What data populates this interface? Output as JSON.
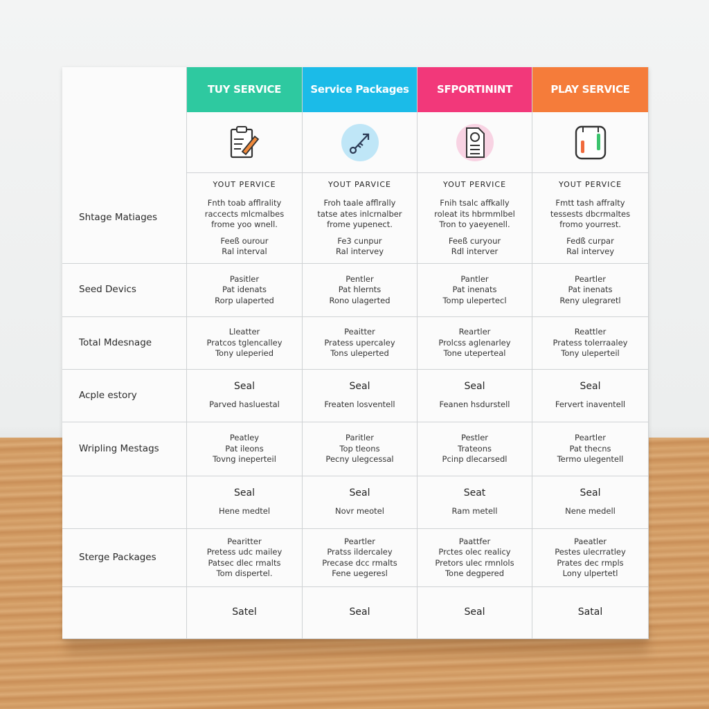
{
  "header": {
    "columns": [
      {
        "label": "TUY SERVICE",
        "color": "#2ec9a0",
        "icon": "clipboard-pencil-icon"
      },
      {
        "label": "Service Packages",
        "color": "#1bbbe8",
        "icon": "key-arrow-icon"
      },
      {
        "label": "SFPORTININT",
        "color": "#f2387a",
        "icon": "document-clock-icon"
      },
      {
        "label": "PLAY SERVICE",
        "color": "#f57c3a",
        "icon": "device-bars-icon"
      }
    ]
  },
  "rows": [
    {
      "label": "Shtage Matiages",
      "cells": [
        {
          "title": "YOUT PERVICE",
          "lines": [
            "Fnth toab afflrality",
            "raccects mlcmalbes",
            "frome yoo wnell.",
            "",
            "Feeß ourour",
            "Ral interval"
          ]
        },
        {
          "title": "YOUT PARVICE",
          "lines": [
            "Froh taale afflrally",
            "tatse ates inlcrnalber",
            "frome yupenect.",
            "",
            "Fe3 cunpur",
            "Ral intervey"
          ]
        },
        {
          "title": "YOUT PERVICE",
          "lines": [
            "Fnih tsalc affkally",
            "roleat its hbrmmlbel",
            "Tron to yaeyenell.",
            "",
            "Feeß curyour",
            "Rdl interver"
          ]
        },
        {
          "title": "YOUT PERVICE",
          "lines": [
            "Fmtt tash affralty",
            "tessests dbcrmaltes",
            "fromo yourrest.",
            "",
            "Fedß curpar",
            "Ral intervey"
          ]
        }
      ]
    },
    {
      "label": "Seed Devics",
      "cells": [
        {
          "lines": [
            "Pasitler",
            "Pat idenats",
            "Rorp ulaperted"
          ]
        },
        {
          "lines": [
            "Pentler",
            "Pat hlernts",
            "Rono ulagerted"
          ]
        },
        {
          "lines": [
            "Pantler",
            "Pat inenats",
            "Tomp ulepertecl"
          ]
        },
        {
          "lines": [
            "Peartler",
            "Pat inenats",
            "Reny ulegraretl"
          ]
        }
      ]
    },
    {
      "label": "Total Mdesnage",
      "cells": [
        {
          "lines": [
            "Lleatter",
            "Pratcos tglencalley",
            "Tony uleperied"
          ]
        },
        {
          "lines": [
            "Peaitter",
            "Pratess upercaley",
            "Tons uleperted"
          ]
        },
        {
          "lines": [
            "Reartler",
            "Prolcss aglenarley",
            "Tone uteperteal"
          ]
        },
        {
          "lines": [
            "Reattler",
            "Pratess tolerraaley",
            "Tony uleperteil"
          ]
        }
      ]
    },
    {
      "label": "Acple estory",
      "cells": [
        {
          "title": "Seal",
          "lines": [
            "Parved hasluestal"
          ]
        },
        {
          "title": "Seal",
          "lines": [
            "Freaten losventell"
          ]
        },
        {
          "title": "Seal",
          "lines": [
            "Feanen hsdurstell"
          ]
        },
        {
          "title": "Seal",
          "lines": [
            "Fervert inaventell"
          ]
        }
      ]
    },
    {
      "label": "Wripling Mestags",
      "cells": [
        {
          "lines": [
            "Peatley",
            "Pat ileons",
            "Tovng ineperteil"
          ]
        },
        {
          "lines": [
            "Paritler",
            "Top tleons",
            "Pecny ulegcessal"
          ]
        },
        {
          "lines": [
            "Pestler",
            "Trateons",
            "Pcinp dlecarsedl"
          ]
        },
        {
          "lines": [
            "Peartler",
            "Pat thecns",
            "Termo ulegentell"
          ]
        }
      ]
    },
    {
      "label": "",
      "cells": [
        {
          "title": "Seal",
          "lines": [
            "Hene medtel"
          ]
        },
        {
          "title": "Seal",
          "lines": [
            "Novr meotel"
          ]
        },
        {
          "title": "Seat",
          "lines": [
            "Ram metell"
          ]
        },
        {
          "title": "Seal",
          "lines": [
            "Nene medell"
          ]
        }
      ]
    },
    {
      "label": "Sterge Packages",
      "cells": [
        {
          "lines": [
            "Pearitter",
            "Pretess udc mailey",
            "Patsec dlec rmalts",
            "Tom dispertel."
          ]
        },
        {
          "lines": [
            "Peartler",
            "Pratss ildercaley",
            "Precase dcc rmalts",
            "Fene uegeresl"
          ]
        },
        {
          "lines": [
            "Paattfer",
            "Prctes olec realicy",
            "Pretors ulec rmnlols",
            "Tone degpered"
          ]
        },
        {
          "lines": [
            "Paeatler",
            "Pestes ulecrratley",
            "Prates dec rmpls",
            "Lony ulpertetl"
          ]
        }
      ]
    },
    {
      "label": "",
      "cells": [
        {
          "title": "Satel",
          "lines": []
        },
        {
          "title": "Seal",
          "lines": []
        },
        {
          "title": "Seal",
          "lines": []
        },
        {
          "title": "Satal",
          "lines": []
        }
      ]
    }
  ]
}
